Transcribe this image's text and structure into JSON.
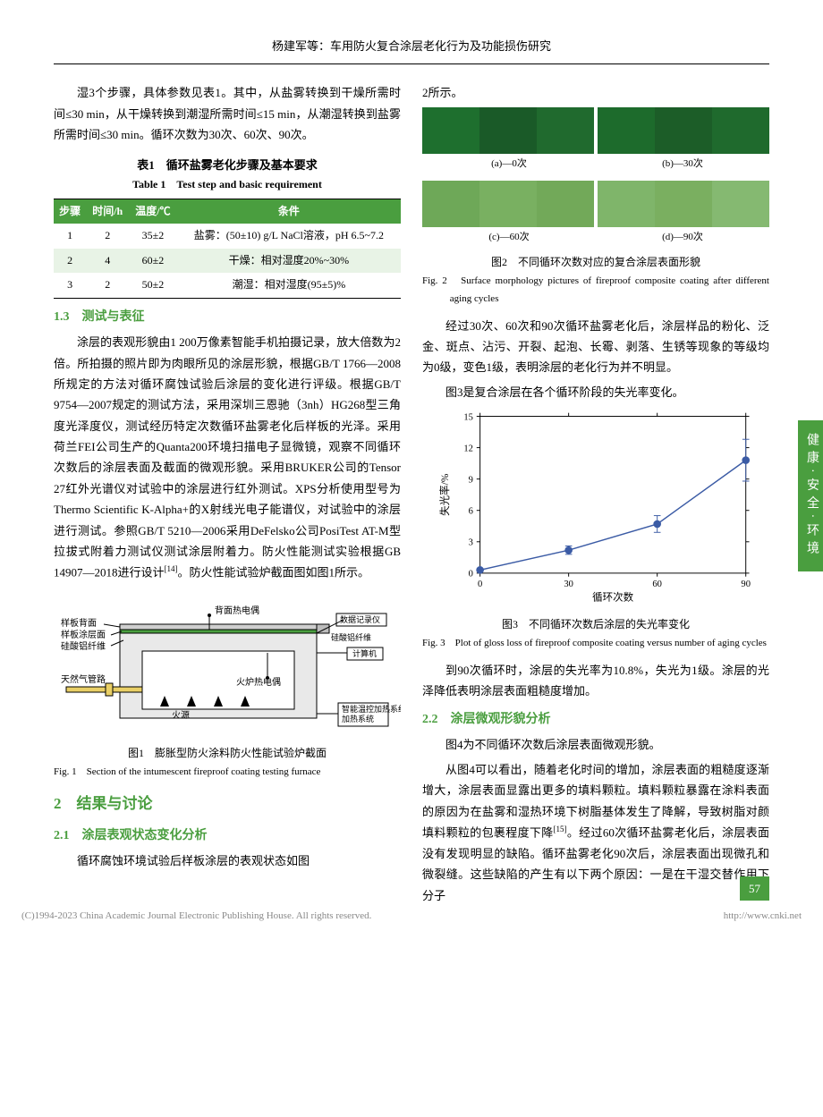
{
  "header": "杨建军等：车用防火复合涂层老化行为及功能损伤研究",
  "left": {
    "para1": "湿3个步骤，具体参数见表1。其中，从盐雾转换到干燥所需时间≤30 min，从干燥转换到潮湿所需时间≤15 min，从潮湿转换到盐雾所需时间≤30 min。循环次数为30次、60次、90次。",
    "table1": {
      "cap_cn": "表1　循环盐雾老化步骤及基本要求",
      "cap_en": "Table 1　Test step and basic requirement",
      "headers": [
        "步骤",
        "时间/h",
        "温度/℃",
        "条件"
      ],
      "rows": [
        [
          "1",
          "2",
          "35±2",
          "盐雾：(50±10) g/L NaCl溶液，pH 6.5~7.2"
        ],
        [
          "2",
          "4",
          "60±2",
          "干燥：相对湿度20%~30%"
        ],
        [
          "3",
          "2",
          "50±2",
          "潮湿：相对湿度(95±5)%"
        ]
      ]
    },
    "h13": "1.3　测试与表征",
    "para2": "涂层的表观形貌由1 200万像素智能手机拍摄记录，放大倍数为2倍。所拍摄的照片即为肉眼所见的涂层形貌，根据GB/T 1766—2008所规定的方法对循环腐蚀试验后涂层的变化进行评级。根据GB/T 9754—2007规定的测试方法，采用深圳三恩驰（3nh）HG268型三角度光泽度仪，测试经历特定次数循环盐雾老化后样板的光泽。采用荷兰FEI公司生产的Quanta200环境扫描电子显微镜，观察不同循环次数后的涂层表面及截面的微观形貌。采用BRUKER公司的Tensor 27红外光谱仪对试验中的涂层进行红外测试。XPS分析使用型号为Thermo Scientific K-Alpha+的X射线光电子能谱仪，对试验中的涂层进行测试。参照GB/T 5210—2006采用DeFelsko公司PosiTest AT-M型拉拔式附着力测试仪测试涂层附着力。防火性能测试实验根据GB 14907—2018进行设计",
    "para2_ref": "[14]",
    "para2_tail": "。防火性能试验炉截面图如图1所示。",
    "fig1": {
      "labels": {
        "back": "样板背面",
        "coating": "样板涂层面",
        "fiber": "硅酸铝纤维",
        "gas": "天然气管路",
        "fire": "火源",
        "tc_back": "背面热电偶",
        "tc_fur": "火炉热电偶",
        "logger": "数据记录仪",
        "calfiber": "硅酸铝纤维",
        "computer": "计算机",
        "heater": "智能温控加热系统"
      },
      "cap_cn": "图1　膨胀型防火涂料防火性能试验炉截面",
      "cap_en": "Fig. 1　Section of the intumescent fireproof coating testing furnace"
    },
    "h2": "2　结果与讨论",
    "h21": "2.1　涂层表观状态变化分析",
    "para3": "循环腐蚀环境试验后样板涂层的表观状态如图"
  },
  "right": {
    "para1": "2所示。",
    "fig2": {
      "labels": [
        "(a)—0次",
        "(b)—30次",
        "(c)—60次",
        "(d)—90次"
      ],
      "colors_top": [
        "#1e6f2e",
        "#1a5a28",
        "#206a2e",
        "#1d6b2c",
        "#1c5d28",
        "#1f6a2d"
      ],
      "colors_bot": [
        "#6ea858",
        "#79b061",
        "#72a959",
        "#7fb56a",
        "#7aaf60",
        "#85b971"
      ],
      "cap_cn": "图2　不同循环次数对应的复合涂层表面形貌",
      "cap_en": "Fig. 2　Surface morphology pictures of fireproof composite coating after different aging cycles"
    },
    "para2": "经过30次、60次和90次循环盐雾老化后，涂层样品的粉化、泛金、斑点、沾污、开裂、起泡、长霉、剥落、生锈等现象的等级均为0级，变色1级，表明涂层的老化行为并不明显。",
    "para3": "图3是复合涂层在各个循环阶段的失光率变化。",
    "fig3": {
      "x": [
        0,
        30,
        60,
        90
      ],
      "y": [
        0.3,
        2.2,
        4.7,
        10.8
      ],
      "err": [
        0,
        0.4,
        0.8,
        2.0
      ],
      "xlim": [
        0,
        90
      ],
      "ylim": [
        0,
        15
      ],
      "xticks": [
        0,
        30,
        60,
        90
      ],
      "yticks": [
        0,
        3,
        6,
        9,
        12,
        15
      ],
      "xlabel": "循环次数",
      "ylabel": "失光率/%",
      "line_color": "#3b5ba5",
      "marker_fill": "#3b5ba5",
      "grid_color": "#000000",
      "bg": "#ffffff",
      "cap_cn": "图3　不同循环次数后涂层的失光率变化",
      "cap_en": "Fig. 3　Plot of gloss loss of fireproof composite coating versus number of aging cycles"
    },
    "para4": "到90次循环时，涂层的失光率为10.8%，失光为1级。涂层的光泽降低表明涂层表面粗糙度增加。",
    "h22": "2.2　涂层微观形貌分析",
    "para5": "图4为不同循环次数后涂层表面微观形貌。",
    "para6a": "从图4可以看出，随着老化时间的增加，涂层表面的粗糙度逐渐增大，涂层表面显露出更多的填料颗粒。填料颗粒暴露在涂料表面的原因为在盐雾和湿热环境下树脂基体发生了降解，导致树脂对颜填料颗粒的包裹程度下降",
    "para6_ref": "[15]",
    "para6b": "。经过60次循环盐雾老化后，涂层表面没有发现明显的缺陷。循环盐雾老化90次后，涂层表面出现微孔和微裂缝。这些缺陷的产生有以下两个原因：一是在干湿交替作用下分子"
  },
  "side_tab": "健康·安全·环境",
  "page_num": "57",
  "footer_left": "(C)1994-2023 China Academic Journal Electronic Publishing House. All rights reserved.",
  "footer_right": "http://www.cnki.net"
}
